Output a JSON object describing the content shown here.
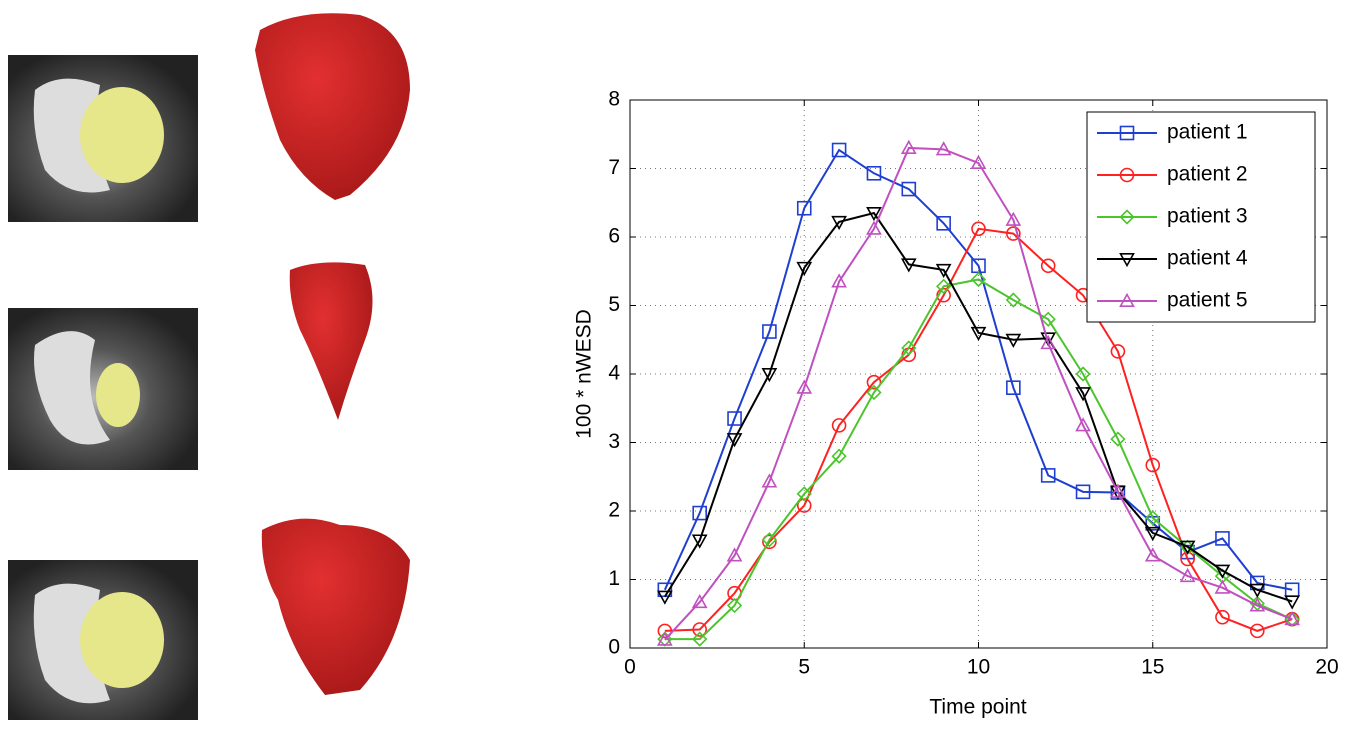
{
  "chart_data": {
    "type": "line",
    "xlabel": "Time point",
    "ylabel": "100 * nWESD",
    "x": [
      1,
      2,
      3,
      4,
      5,
      6,
      7,
      8,
      9,
      10,
      11,
      12,
      13,
      14,
      15,
      16,
      17,
      18,
      19
    ],
    "xlim": [
      0,
      20
    ],
    "xticks": [
      0,
      5,
      10,
      15,
      20
    ],
    "ylim": [
      0,
      8
    ],
    "yticks": [
      0,
      1,
      2,
      3,
      4,
      5,
      6,
      7,
      8
    ],
    "grid": true,
    "legend": "upper right",
    "series": [
      {
        "name": "patient 1",
        "color": "#1f3fd0",
        "marker": "square",
        "values": [
          0.85,
          1.97,
          3.35,
          4.62,
          6.42,
          7.27,
          6.93,
          6.7,
          6.2,
          5.58,
          3.8,
          2.52,
          2.28,
          2.27,
          1.82,
          1.4,
          1.6,
          0.95,
          0.85
        ]
      },
      {
        "name": "patient 2",
        "color": "#ff2020",
        "marker": "circle",
        "values": [
          0.25,
          0.27,
          0.8,
          1.55,
          2.08,
          3.25,
          3.88,
          4.28,
          5.15,
          6.12,
          6.05,
          5.58,
          5.15,
          4.33,
          2.67,
          1.3,
          0.45,
          0.25,
          0.42
        ]
      },
      {
        "name": "patient 3",
        "color": "#4cc42c",
        "marker": "diamond",
        "values": [
          0.13,
          0.13,
          0.62,
          1.58,
          2.25,
          2.8,
          3.73,
          4.38,
          5.28,
          5.38,
          5.08,
          4.8,
          4.0,
          3.05,
          1.9,
          1.47,
          1.05,
          0.65,
          0.42
        ]
      },
      {
        "name": "patient 4",
        "color": "#000000",
        "marker": "triangle-down",
        "values": [
          0.75,
          1.57,
          3.05,
          4.0,
          5.55,
          6.22,
          6.35,
          5.6,
          5.52,
          4.6,
          4.5,
          4.52,
          3.72,
          2.28,
          1.68,
          1.48,
          1.13,
          0.85,
          0.68
        ]
      },
      {
        "name": "patient 5",
        "color": "#c050c0",
        "marker": "triangle-up",
        "values": [
          0.12,
          0.67,
          1.35,
          2.43,
          3.8,
          5.35,
          6.12,
          7.3,
          7.28,
          7.08,
          6.25,
          4.45,
          3.25,
          2.28,
          1.35,
          1.05,
          0.88,
          0.62,
          0.42
        ]
      }
    ]
  }
}
